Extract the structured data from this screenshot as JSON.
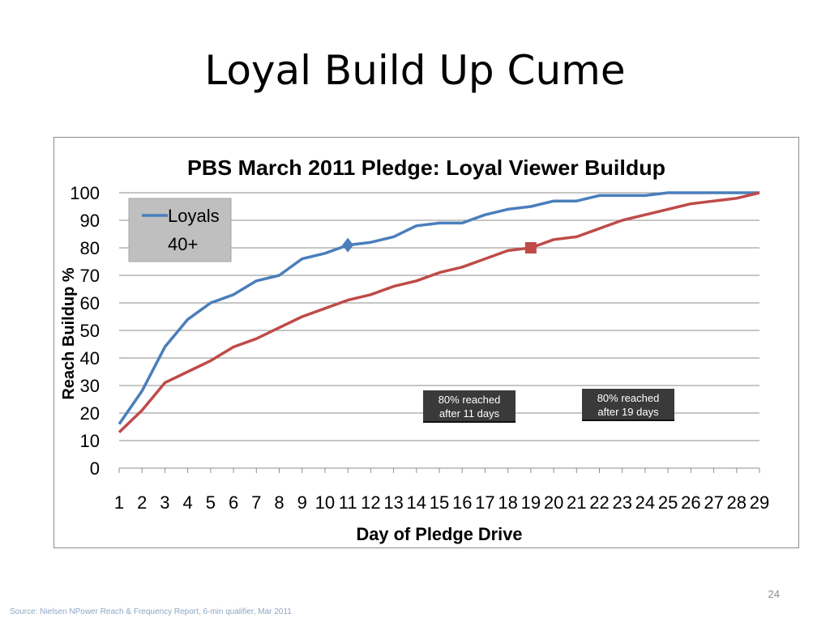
{
  "slide": {
    "title": "Loyal Build Up Cume",
    "page_number": "24",
    "source": "Source: Nielsen NPower Reach & Frequency Report, 6-min qualifier, Mar 2011"
  },
  "chart_data": {
    "type": "line",
    "title": "PBS March 2011 Pledge: Loyal Viewer  Buildup",
    "xlabel": "Day of Pledge Drive",
    "ylabel": "Reach Buildup %",
    "ylim": [
      0,
      100
    ],
    "yticks": [
      0,
      10,
      20,
      30,
      40,
      50,
      60,
      70,
      80,
      90,
      100
    ],
    "grid": true,
    "legend_position": "top-left",
    "x": [
      1,
      2,
      3,
      4,
      5,
      6,
      7,
      8,
      9,
      10,
      11,
      12,
      13,
      14,
      15,
      16,
      17,
      18,
      19,
      20,
      21,
      22,
      23,
      24,
      25,
      26,
      27,
      28,
      29
    ],
    "series": [
      {
        "name": "Loyals 40+",
        "color": "#4a7ebb",
        "values": [
          16,
          28,
          44,
          54,
          60,
          63,
          68,
          70,
          76,
          78,
          81,
          82,
          84,
          88,
          89,
          89,
          92,
          94,
          95,
          97,
          97,
          99,
          99,
          99,
          100,
          100,
          100,
          100,
          100
        ],
        "marker": {
          "x": 11,
          "y": 81,
          "shape": "diamond"
        }
      },
      {
        "name": "",
        "color": "#be4b48",
        "values": [
          13,
          21,
          31,
          35,
          39,
          44,
          47,
          51,
          55,
          58,
          61,
          63,
          66,
          68,
          71,
          73,
          76,
          79,
          80,
          83,
          84,
          87,
          90,
          92,
          94,
          96,
          97,
          98,
          100
        ],
        "marker": {
          "x": 19,
          "y": 80,
          "shape": "square"
        }
      }
    ],
    "annotations": [
      {
        "text": "80% reached after 11 days"
      },
      {
        "text": "80% reached after 19 days"
      }
    ]
  }
}
